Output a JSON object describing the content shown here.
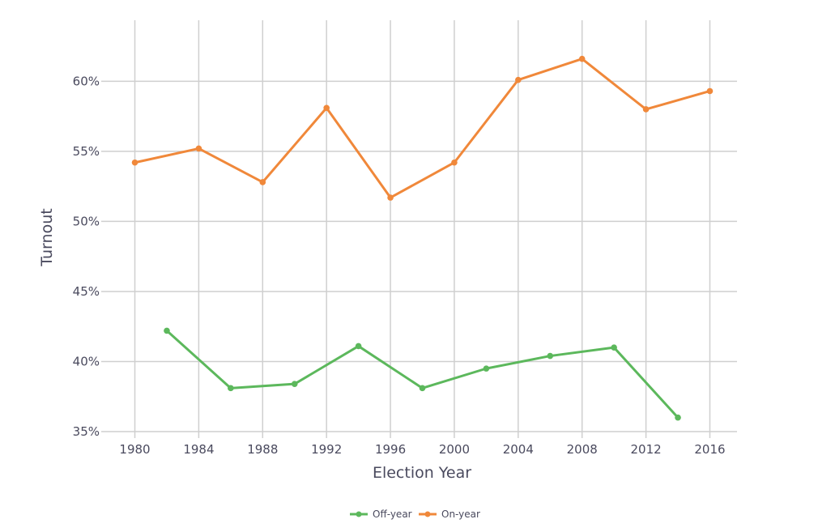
{
  "chart_data": {
    "type": "line",
    "title": "",
    "xlabel": "Election Year",
    "ylabel": "Turnout",
    "xlim": [
      1978.3,
      2017.7
    ],
    "ylim": [
      35,
      63.2
    ],
    "grid": true,
    "legend_position": "bottom",
    "x_ticks": [
      "1980",
      "1984",
      "1988",
      "1992",
      "1996",
      "2000",
      "2004",
      "2008",
      "2012",
      "2016"
    ],
    "x_tick_values": [
      1980,
      1984,
      1988,
      1992,
      1996,
      2000,
      2004,
      2008,
      2012,
      2016
    ],
    "y_ticks": [
      "35%",
      "40%",
      "45%",
      "50%",
      "55%",
      "60%"
    ],
    "y_tick_values": [
      35,
      40,
      45,
      50,
      55,
      60
    ],
    "series": [
      {
        "name": "Off-year",
        "color": "#5cb85c",
        "x": [
          1982,
          1986,
          1990,
          1994,
          1998,
          2002,
          2006,
          2010,
          2014
        ],
        "values": [
          42.2,
          38.1,
          38.4,
          41.1,
          38.1,
          39.5,
          40.4,
          41.0,
          36.0
        ]
      },
      {
        "name": "On-year",
        "color": "#f0883a",
        "x": [
          1980,
          1984,
          1988,
          1992,
          1996,
          2000,
          2004,
          2008,
          2012,
          2016
        ],
        "values": [
          54.2,
          55.2,
          52.8,
          58.1,
          51.7,
          54.2,
          60.1,
          61.6,
          58.0,
          59.3
        ]
      }
    ]
  }
}
